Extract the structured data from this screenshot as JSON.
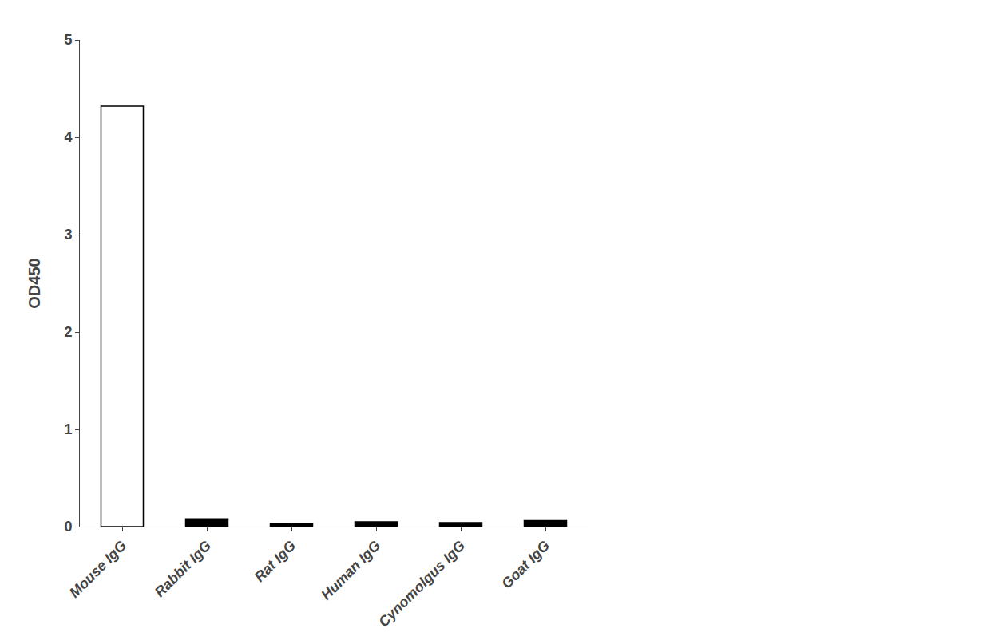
{
  "chart_data": {
    "type": "bar",
    "categories": [
      "Mouse IgG",
      "Rabbit IgG",
      "Rat IgG",
      "Human IgG",
      "Cynomolgus IgG",
      "Goat IgG"
    ],
    "values": [
      4.32,
      0.08,
      0.03,
      0.05,
      0.04,
      0.07
    ],
    "colors": [
      "#ffffff",
      "#000000",
      "#000000",
      "#000000",
      "#000000",
      "#000000"
    ],
    "ylabel": "OD450",
    "ylim": [
      0,
      5
    ],
    "yticks": [
      0,
      1,
      2,
      3,
      4,
      5
    ],
    "grid": false
  }
}
